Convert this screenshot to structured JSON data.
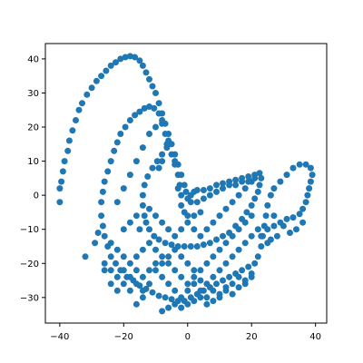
{
  "chart_data": {
    "type": "scatter",
    "title": "",
    "xlabel": "",
    "ylabel": "",
    "xlim": [
      -44.5,
      43.5
    ],
    "ylim": [
      -37.5,
      44.5
    ],
    "grid": false,
    "marker_color": "#1f77b4",
    "xticks": [
      -40,
      -20,
      0,
      20,
      40
    ],
    "yticks": [
      -30,
      -20,
      -10,
      0,
      10,
      20,
      30,
      40
    ],
    "series": [
      {
        "points": [
          [
            -40,
            -2
          ],
          [
            -40,
            2
          ],
          [
            -39.5,
            4
          ],
          [
            -39,
            7
          ],
          [
            -38.5,
            10
          ],
          [
            -37.5,
            13
          ],
          [
            -37,
            16
          ],
          [
            -36,
            19
          ],
          [
            -35,
            22
          ],
          [
            -34,
            25
          ],
          [
            -33,
            27
          ],
          [
            -31.5,
            29.5
          ],
          [
            -30,
            31.5
          ],
          [
            -28.5,
            33.5
          ],
          [
            -27,
            35
          ],
          [
            -25.5,
            36.5
          ],
          [
            -24,
            38
          ],
          [
            -22.5,
            39
          ],
          [
            -21,
            40
          ],
          [
            -19.5,
            40.5
          ],
          [
            -18,
            40.8
          ],
          [
            -16.5,
            40.5
          ],
          [
            -15,
            39.5
          ],
          [
            -14,
            38
          ],
          [
            -13,
            36
          ],
          [
            -12,
            34
          ],
          [
            -11,
            32
          ],
          [
            -10,
            30
          ],
          [
            -9,
            27
          ],
          [
            -8,
            24
          ],
          [
            -7,
            21
          ],
          [
            -6,
            18
          ],
          [
            -5,
            15
          ],
          [
            -4,
            12
          ],
          [
            -3,
            9
          ],
          [
            -2,
            6
          ],
          [
            -1,
            3
          ],
          [
            -0.5,
            1
          ],
          [
            0,
            -1
          ],
          [
            1,
            0
          ],
          [
            2,
            1
          ],
          [
            3,
            1.5
          ],
          [
            5,
            1.5
          ],
          [
            7,
            2
          ],
          [
            9,
            3
          ],
          [
            11,
            3.5
          ],
          [
            13,
            4
          ],
          [
            15,
            4.5
          ],
          [
            17,
            5
          ],
          [
            19,
            5.5
          ],
          [
            21,
            6
          ],
          [
            22.5,
            6.5
          ],
          [
            23,
            5
          ],
          [
            22.5,
            3
          ],
          [
            22,
            1
          ],
          [
            21,
            -1
          ],
          [
            20,
            -3
          ],
          [
            18.5,
            -5
          ],
          [
            17,
            -7
          ],
          [
            15,
            -9
          ],
          [
            13,
            -11
          ],
          [
            11,
            -12
          ],
          [
            9,
            -13
          ],
          [
            7,
            -14
          ],
          [
            5,
            -14.5
          ],
          [
            3,
            -15
          ],
          [
            1,
            -15
          ],
          [
            -1,
            -15
          ],
          [
            -3,
            -15
          ],
          [
            -5,
            -14.5
          ],
          [
            -7,
            -14
          ],
          [
            -9,
            -13
          ],
          [
            -10.5,
            -12
          ],
          [
            -12,
            -10
          ],
          [
            -13,
            -8
          ],
          [
            -13.5,
            -6
          ],
          [
            -14,
            -3
          ],
          [
            -14,
            0
          ],
          [
            -13.5,
            3
          ],
          [
            -12.5,
            5.5
          ],
          [
            -11,
            8
          ],
          [
            -9.5,
            10
          ],
          [
            -8,
            12
          ],
          [
            -6.5,
            14
          ],
          [
            -5,
            12
          ],
          [
            -4,
            9
          ],
          [
            -3,
            6
          ],
          [
            -2.5,
            3
          ],
          [
            -2,
            0
          ],
          [
            -2,
            -3
          ],
          [
            -1,
            -5
          ],
          [
            0,
            -6
          ],
          [
            2,
            -6
          ],
          [
            4,
            -5
          ],
          [
            -27,
            -2
          ],
          [
            -26.5,
            1
          ],
          [
            -26,
            4
          ],
          [
            -25,
            7
          ],
          [
            -24,
            10
          ],
          [
            -23,
            13
          ],
          [
            -22,
            15.5
          ],
          [
            -21,
            18
          ],
          [
            -19.5,
            20
          ],
          [
            -18,
            22
          ],
          [
            -16.5,
            23.5
          ],
          [
            -15,
            24.5
          ],
          [
            -13.5,
            25.5
          ],
          [
            -12,
            26
          ],
          [
            -10.5,
            25.5
          ],
          [
            -9,
            24
          ],
          [
            -8,
            21
          ],
          [
            -7,
            18
          ],
          [
            -6.5,
            15
          ],
          [
            -8,
            10
          ],
          [
            -9,
            8
          ],
          [
            -27,
            -6
          ],
          [
            -26.5,
            -9
          ],
          [
            -26,
            -12
          ],
          [
            -25,
            -15
          ],
          [
            -24,
            -18
          ],
          [
            -22.5,
            -20
          ],
          [
            -21,
            -22
          ],
          [
            -19,
            -24
          ],
          [
            -17,
            -25
          ],
          [
            -15,
            -26.5
          ],
          [
            -13,
            -27.5
          ],
          [
            -11,
            -28.5
          ],
          [
            -9,
            -29.5
          ],
          [
            -7,
            -30
          ],
          [
            -5,
            -30.5
          ],
          [
            -3,
            -31
          ],
          [
            -1,
            -31
          ],
          [
            1,
            -30
          ],
          [
            3,
            -29
          ],
          [
            5,
            -28
          ],
          [
            7,
            -27
          ],
          [
            9,
            -26
          ],
          [
            11,
            -25
          ],
          [
            13,
            -24
          ],
          [
            15,
            -23
          ],
          [
            17,
            -22
          ],
          [
            19,
            -21
          ],
          [
            21,
            -20
          ],
          [
            22,
            -18
          ],
          [
            23,
            -15
          ],
          [
            23.5,
            -12
          ],
          [
            24,
            -9
          ],
          [
            24.5,
            -6
          ],
          [
            25,
            -3
          ],
          [
            26,
            0
          ],
          [
            27,
            2
          ],
          [
            29,
            4
          ],
          [
            31,
            6
          ],
          [
            33,
            8
          ],
          [
            35,
            9
          ],
          [
            37,
            9
          ],
          [
            38.5,
            8
          ],
          [
            39,
            6
          ],
          [
            38.5,
            4
          ],
          [
            38,
            2
          ],
          [
            37.5,
            0
          ],
          [
            37,
            -2
          ],
          [
            36,
            -4
          ],
          [
            35,
            -5.5
          ],
          [
            33,
            -6.5
          ],
          [
            31,
            -7
          ],
          [
            29,
            -8
          ],
          [
            27,
            -9
          ],
          [
            25,
            -10
          ],
          [
            23,
            -12
          ],
          [
            -32,
            -18
          ],
          [
            -29,
            -14
          ],
          [
            -28,
            -11
          ],
          [
            -26,
            -22
          ],
          [
            -24,
            -26
          ],
          [
            -22,
            -28
          ],
          [
            -20,
            -22
          ],
          [
            -18,
            -20
          ],
          [
            -16,
            -18
          ],
          [
            -14,
            -16
          ],
          [
            -12,
            -14
          ],
          [
            -10,
            -16
          ],
          [
            -8,
            -18
          ],
          [
            -6,
            -20
          ],
          [
            -4,
            -22
          ],
          [
            -2,
            -24
          ],
          [
            0,
            -26
          ],
          [
            2,
            -24
          ],
          [
            4,
            -22
          ],
          [
            6,
            -20
          ],
          [
            8,
            -18
          ],
          [
            10,
            -16
          ],
          [
            12,
            -14
          ],
          [
            14,
            -12
          ],
          [
            16,
            -10
          ],
          [
            18,
            -8
          ],
          [
            20,
            -6
          ],
          [
            -24,
            -14
          ],
          [
            -22,
            -16
          ],
          [
            -20,
            -18
          ],
          [
            -18,
            -24
          ],
          [
            -16,
            -22
          ],
          [
            -14,
            -24
          ],
          [
            -12,
            -22
          ],
          [
            -10,
            -20
          ],
          [
            -8,
            -24
          ],
          [
            -6,
            -26
          ],
          [
            -4,
            -28
          ],
          [
            -2,
            -30
          ],
          [
            0,
            -28
          ],
          [
            2,
            -26
          ],
          [
            4,
            -28
          ],
          [
            6,
            -30
          ],
          [
            8,
            -28
          ],
          [
            10,
            -30
          ],
          [
            12,
            -28
          ],
          [
            14,
            -26
          ],
          [
            16,
            -24
          ],
          [
            18,
            -26
          ],
          [
            20,
            -24
          ],
          [
            -20,
            -10
          ],
          [
            -18,
            -8
          ],
          [
            -16,
            -6
          ],
          [
            -15,
            -10
          ],
          [
            -12,
            -4
          ],
          [
            -10,
            -6
          ],
          [
            -8,
            -8
          ],
          [
            -6,
            -10
          ],
          [
            -4,
            -12
          ],
          [
            -2,
            -10
          ],
          [
            0,
            -8
          ],
          [
            2,
            -10
          ],
          [
            4,
            -12
          ],
          [
            6,
            -10
          ],
          [
            8,
            -8
          ],
          [
            10,
            -6
          ],
          [
            12,
            -4
          ],
          [
            14,
            -2
          ],
          [
            16,
            0
          ],
          [
            18,
            2
          ],
          [
            20,
            4
          ],
          [
            -16,
            -32
          ],
          [
            -14,
            -30
          ],
          [
            -8,
            -34
          ],
          [
            -6,
            -33
          ],
          [
            -4,
            -32
          ],
          [
            -2,
            -33
          ],
          [
            0,
            -32
          ],
          [
            2,
            -31
          ],
          [
            4,
            -30
          ],
          [
            6,
            -32
          ],
          [
            8,
            -31
          ],
          [
            10,
            -29
          ],
          [
            12,
            -27
          ],
          [
            14,
            -29
          ],
          [
            16,
            -27
          ],
          [
            18,
            -25
          ],
          [
            20,
            -23
          ],
          [
            27,
            -6
          ],
          [
            30,
            -9
          ],
          [
            32,
            -11
          ],
          [
            34,
            -10
          ],
          [
            36,
            -8
          ],
          [
            28,
            -12
          ],
          [
            26,
            -13
          ],
          [
            25,
            -14
          ],
          [
            22,
            -10
          ],
          [
            20,
            -12
          ],
          [
            18,
            -14
          ],
          [
            16,
            -16
          ],
          [
            14,
            -18
          ],
          [
            12,
            -20
          ],
          [
            10,
            -22
          ],
          [
            8,
            -24
          ],
          [
            6,
            -26
          ],
          [
            4,
            -25
          ],
          [
            2,
            -22
          ],
          [
            0,
            -20
          ],
          [
            -2,
            -18
          ],
          [
            -4,
            -16
          ],
          [
            -6,
            -18
          ],
          [
            -8,
            -20
          ],
          [
            -10,
            -22
          ],
          [
            -12,
            -26
          ],
          [
            -14,
            -28
          ],
          [
            -16,
            -26
          ],
          [
            -18,
            -28
          ],
          [
            -20,
            -26
          ],
          [
            -22,
            -24
          ],
          [
            -24,
            -22
          ],
          [
            -26,
            -20
          ],
          [
            -22,
            -2
          ],
          [
            -20,
            2
          ],
          [
            -18,
            6
          ],
          [
            -16,
            10
          ],
          [
            -14,
            14
          ],
          [
            -12,
            18
          ],
          [
            -10,
            20
          ],
          [
            -8,
            22
          ],
          [
            -6,
            16
          ],
          [
            -4,
            10
          ],
          [
            -3,
            2
          ],
          [
            1,
            -2
          ],
          [
            3,
            -2
          ],
          [
            5,
            -1
          ],
          [
            7,
            0
          ],
          [
            9,
            1
          ],
          [
            11,
            2
          ],
          [
            13,
            3
          ],
          [
            15,
            3
          ],
          [
            17,
            4
          ],
          [
            19,
            4
          ],
          [
            21,
            5
          ]
        ]
      }
    ]
  }
}
